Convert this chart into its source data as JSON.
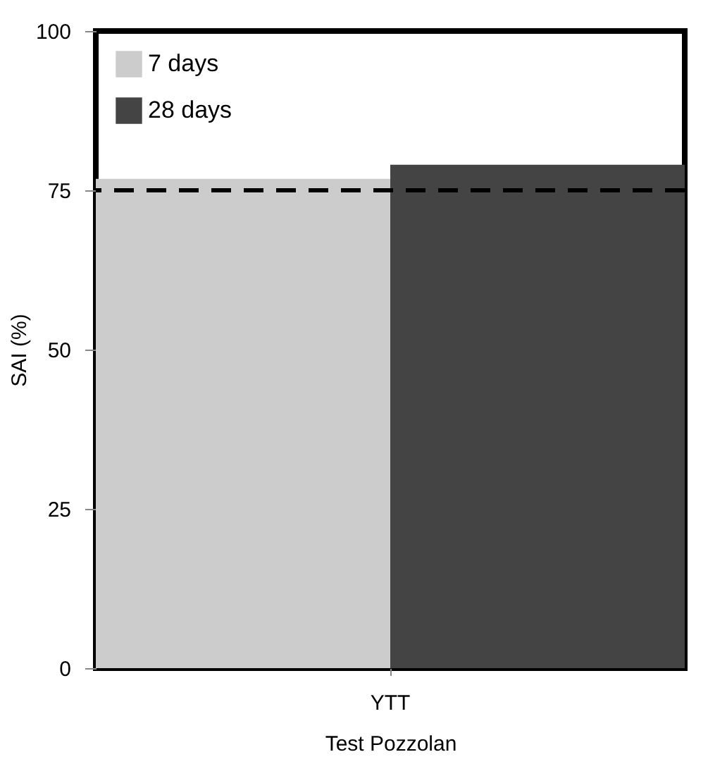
{
  "chart_data": {
    "type": "bar",
    "xlabel": "Test Pozzolan",
    "ylabel": "SAI (%)",
    "categories": [
      "YTT"
    ],
    "series": [
      {
        "name": "7 days",
        "color": "#cccccc",
        "values": [
          76.8
        ]
      },
      {
        "name": "28 days",
        "color": "#444444",
        "values": [
          79
        ]
      }
    ],
    "ylim": [
      0,
      100
    ],
    "yticks": [
      0,
      25,
      50,
      75,
      100
    ],
    "legend": "top left",
    "ref_lines": [
      {
        "axis": "y",
        "value": 75,
        "color": "#000000",
        "line_style": "dashed"
      }
    ]
  }
}
